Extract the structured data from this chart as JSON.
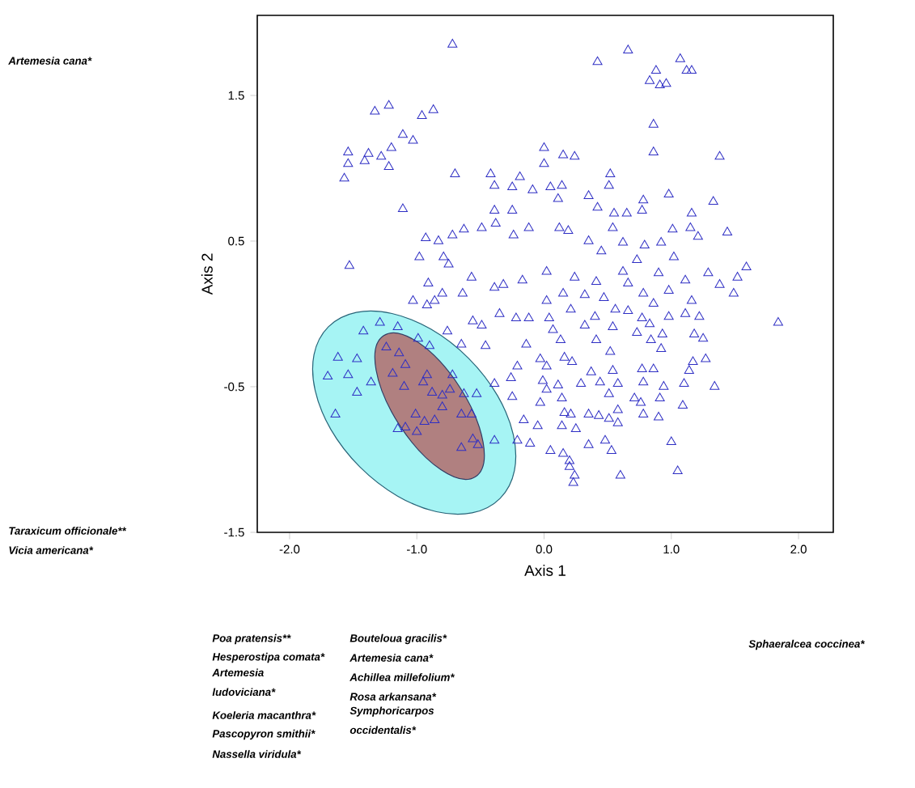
{
  "chart_data": {
    "type": "scatter",
    "xlabel": "Axis 1",
    "ylabel": "Axis 2",
    "color": "#2e2ec4",
    "marker": "triangle",
    "xlim": [
      -2.254,
      2.273
    ],
    "ylim": [
      -1.5,
      2.05
    ],
    "xticks": [
      {
        "value": -2,
        "label": "-2.0"
      },
      {
        "value": -1,
        "label": "-1.0"
      },
      {
        "value": 0,
        "label": "0.0"
      },
      {
        "value": 1,
        "label": "1.0"
      },
      {
        "value": 2,
        "label": "2.0"
      }
    ],
    "yticks": [
      1.5,
      0.5,
      -0.5,
      -1.5
    ],
    "x": [
      -0.72,
      -1.33,
      -1.22,
      -0.96,
      -0.87,
      -1.11,
      -1.03,
      -1.54,
      -1.54,
      -1.57,
      -1.38,
      -1.41,
      -1.28,
      -1.2,
      -1.22,
      -0.7,
      -1.11,
      -1.53,
      0.42,
      0.66,
      1.07,
      1.12,
      1.16,
      0.88,
      0.83,
      0.91,
      0.96,
      0.86,
      0.86,
      1.38,
      0.0,
      0.15,
      0.24,
      0.0,
      0.52,
      0.05,
      0.14,
      0.51,
      0.11,
      0.35,
      0.42,
      0.55,
      0.65,
      0.77,
      0.78,
      0.98,
      1.33,
      1.16,
      0.54,
      0.12,
      0.19,
      1.01,
      1.15,
      1.21,
      1.44,
      0.35,
      0.62,
      0.92,
      0.79,
      1.02,
      0.73,
      0.45,
      1.59,
      -0.42,
      -0.19,
      -0.39,
      -0.25,
      -0.09,
      -0.39,
      -0.25,
      -0.63,
      -0.49,
      -0.38,
      -0.93,
      -0.83,
      -0.72,
      -0.98,
      -0.79,
      -0.75,
      -0.12,
      -0.24,
      -0.91,
      -0.8,
      -1.03,
      -0.92,
      -0.86,
      -0.57,
      -0.64,
      -0.39,
      -0.32,
      -0.17,
      -0.56,
      -0.49,
      -0.35,
      -0.22,
      -0.12,
      -1.29,
      -1.15,
      -1.42,
      -0.99,
      -0.9,
      -0.76,
      -0.65,
      -0.46,
      -1.62,
      -1.47,
      -1.7,
      -1.54,
      -1.47,
      -1.64,
      -1.36,
      -1.24,
      -1.14,
      -1.09,
      -1.19,
      -1.1,
      -0.92,
      -0.95,
      -0.88,
      -0.8,
      -0.74,
      -0.63,
      -0.53,
      -0.72,
      -0.8,
      -1.01,
      -0.94,
      -0.86,
      -1.09,
      -1.15,
      -1.0,
      -0.65,
      -0.57,
      -0.56,
      -0.52,
      -0.65,
      -0.39,
      -0.21,
      -0.11,
      -0.39,
      -0.26,
      -0.21,
      -0.25,
      -0.16,
      -0.05,
      -0.03,
      -0.01,
      -0.03,
      -0.14,
      0.02,
      0.24,
      0.41,
      0.62,
      0.66,
      0.9,
      1.11,
      1.29,
      1.38,
      1.52,
      1.49,
      0.15,
      0.32,
      0.47,
      0.78,
      0.98,
      1.16,
      0.86,
      0.02,
      0.21,
      0.56,
      0.66,
      0.77,
      0.98,
      1.11,
      1.22,
      0.83,
      0.04,
      0.4,
      0.32,
      0.54,
      0.93,
      1.18,
      1.25,
      0.73,
      0.13,
      0.41,
      0.84,
      0.07,
      0.52,
      0.92,
      1.17,
      1.27,
      1.14,
      0.86,
      0.77,
      0.54,
      0.37,
      0.22,
      0.16,
      0.02,
      1.34,
      1.1,
      0.94,
      0.78,
      0.58,
      0.44,
      0.29,
      0.11,
      0.02,
      0.51,
      0.71,
      0.91,
      1.09,
      0.76,
      0.14,
      0.16,
      0.21,
      0.35,
      0.43,
      0.51,
      0.58,
      0.58,
      0.78,
      0.9,
      0.14,
      0.25,
      0.35,
      0.48,
      0.53,
      1.0,
      0.05,
      0.15,
      0.2,
      0.2,
      0.24,
      0.23,
      0.6,
      1.05,
      1.84
    ],
    "values": [
      1.85,
      1.39,
      1.43,
      1.36,
      1.4,
      1.23,
      1.19,
      1.11,
      1.03,
      0.93,
      1.1,
      1.05,
      1.08,
      1.14,
      1.01,
      0.96,
      0.72,
      0.33,
      1.73,
      1.81,
      1.75,
      1.67,
      1.67,
      1.67,
      1.6,
      1.57,
      1.58,
      1.3,
      1.11,
      1.08,
      1.14,
      1.09,
      1.08,
      1.03,
      0.96,
      0.87,
      0.88,
      0.88,
      0.79,
      0.81,
      0.73,
      0.69,
      0.69,
      0.71,
      0.78,
      0.82,
      0.77,
      0.69,
      0.59,
      0.59,
      0.57,
      0.58,
      0.59,
      0.53,
      0.56,
      0.5,
      0.49,
      0.49,
      0.47,
      0.39,
      0.37,
      0.43,
      0.32,
      0.96,
      0.94,
      0.88,
      0.87,
      0.85,
      0.71,
      0.71,
      0.58,
      0.59,
      0.62,
      0.52,
      0.5,
      0.54,
      0.39,
      0.39,
      0.34,
      0.59,
      0.54,
      0.21,
      0.14,
      0.09,
      0.06,
      0.09,
      0.25,
      0.14,
      0.18,
      0.2,
      0.23,
      -0.05,
      -0.08,
      0.0,
      -0.03,
      -0.03,
      -0.06,
      -0.09,
      -0.12,
      -0.17,
      -0.22,
      -0.12,
      -0.21,
      -0.22,
      -0.3,
      -0.31,
      -0.43,
      -0.42,
      -0.54,
      -0.69,
      -0.47,
      -0.23,
      -0.27,
      -0.35,
      -0.41,
      -0.5,
      -0.42,
      -0.47,
      -0.54,
      -0.56,
      -0.52,
      -0.55,
      -0.55,
      -0.42,
      -0.64,
      -0.69,
      -0.74,
      -0.73,
      -0.78,
      -0.79,
      -0.81,
      -0.69,
      -0.69,
      -0.86,
      -0.9,
      -0.92,
      -0.87,
      -0.87,
      -0.89,
      -0.48,
      -0.44,
      -0.36,
      -0.57,
      -0.73,
      -0.77,
      -0.61,
      -0.46,
      -0.31,
      -0.21,
      0.29,
      0.25,
      0.22,
      0.29,
      0.21,
      0.28,
      0.23,
      0.28,
      0.2,
      0.25,
      0.14,
      0.14,
      0.13,
      0.11,
      0.14,
      0.16,
      0.09,
      0.07,
      0.09,
      0.03,
      0.03,
      0.02,
      -0.03,
      -0.02,
      0.0,
      -0.02,
      -0.07,
      -0.03,
      -0.02,
      -0.08,
      -0.09,
      -0.14,
      -0.14,
      -0.17,
      -0.13,
      -0.18,
      -0.18,
      -0.18,
      -0.11,
      -0.26,
      -0.24,
      -0.33,
      -0.31,
      -0.39,
      -0.38,
      -0.38,
      -0.39,
      -0.4,
      -0.33,
      -0.3,
      -0.36,
      -0.5,
      -0.48,
      -0.5,
      -0.47,
      -0.48,
      -0.47,
      -0.48,
      -0.49,
      -0.52,
      -0.55,
      -0.58,
      -0.58,
      -0.63,
      -0.61,
      -0.58,
      -0.68,
      -0.69,
      -0.69,
      -0.7,
      -0.72,
      -0.66,
      -0.75,
      -0.69,
      -0.71,
      -0.77,
      -0.79,
      -0.9,
      -0.87,
      -0.94,
      -0.88,
      -0.94,
      -0.96,
      -1.01,
      -1.05,
      -1.11,
      -1.16,
      -1.11,
      -1.08,
      -0.06
    ],
    "annotations": [
      "Artemesia cana*",
      "Taraxicum officionale**",
      "Vicia americana*",
      "Poa pratensis**",
      "Hesperostipa comata*",
      "Artemesia ludoviciana*",
      "Koeleria macanthra*",
      "Pascopyron smithii*",
      "Nassella viridula*",
      "Bouteloua gracilis*",
      "Artemesia cana*",
      "Achillea millefolium*",
      "Rosa arkansana*",
      "Symphoricarpos occidentalis*",
      "Sphaeralcea coccinea*"
    ]
  }
}
